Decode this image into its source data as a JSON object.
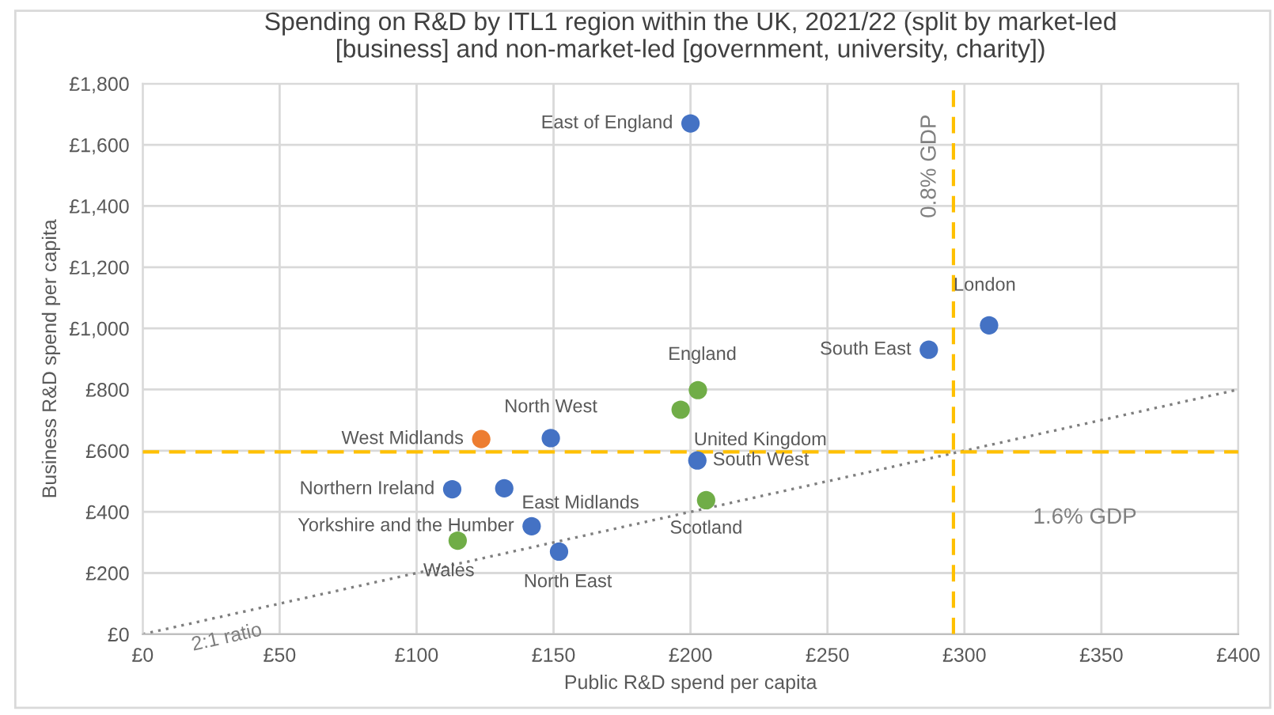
{
  "chart_data": {
    "type": "scatter",
    "title": "Spending on R&D by ITL1 region within the UK, 2021/22 (split by market-led\n[business] and non-market-led [government, university, charity])",
    "xlabel": "Public R&D spend per capita",
    "ylabel": "Business R&D spend per capita",
    "series": [
      {
        "color": "#4472c4",
        "x": [
          200,
          309,
          287,
          202.5,
          149,
          113,
          132,
          142,
          152
        ],
        "values": [
          1670,
          1010,
          930,
          568,
          641,
          474,
          477,
          353,
          270
        ]
      },
      {
        "color": "#ed7d31",
        "x": [
          123.6
        ],
        "values": [
          638
        ]
      },
      {
        "color": "#70ad47",
        "x": [
          202.7,
          196.4,
          205.7,
          115
        ],
        "values": [
          798,
          734,
          438,
          306
        ]
      },
      {
        "type": "line",
        "color": "#7f7f7f",
        "line_style": "dotted",
        "marker": "none",
        "x": [
          0,
          400
        ],
        "values": [
          0,
          800
        ]
      }
    ],
    "marker": "circle",
    "xlim": [
      0,
      400
    ],
    "ylim": [
      0,
      1800
    ],
    "xticks": [
      {
        "value": 0,
        "label": "£0"
      },
      {
        "value": 50,
        "label": "£50"
      },
      {
        "value": 100,
        "label": "£100"
      },
      {
        "value": 150,
        "label": "£150"
      },
      {
        "value": 200,
        "label": "£200"
      },
      {
        "value": 250,
        "label": "£250"
      },
      {
        "value": 300,
        "label": "£300"
      },
      {
        "value": 350,
        "label": "£350"
      },
      {
        "value": 400,
        "label": "£400"
      }
    ],
    "yticks": [
      {
        "value": 0,
        "label": "£0"
      },
      {
        "value": 200,
        "label": "£200"
      },
      {
        "value": 400,
        "label": "£400"
      },
      {
        "value": 600,
        "label": "£600"
      },
      {
        "value": 800,
        "label": "£800"
      },
      {
        "value": 1000,
        "label": "£1,000"
      },
      {
        "value": 1200,
        "label": "£1,200"
      },
      {
        "value": 1400,
        "label": "£1,400"
      },
      {
        "value": 1600,
        "label": "£1,600"
      },
      {
        "value": 1800,
        "label": "£1,800"
      }
    ],
    "grid": true,
    "ref_lines": [
      {
        "axis": "x",
        "value": 296,
        "label": "0.8% GDP",
        "color": "#ffc000",
        "line_style": "dashed"
      },
      {
        "axis": "y",
        "value": 596,
        "label": "1.6% GDP",
        "color": "#ffc000",
        "line_style": "dashed"
      }
    ],
    "annotations": [
      {
        "text": "East of England",
        "x": 200,
        "y": 1670
      },
      {
        "text": "London",
        "x": 309,
        "y": 1010
      },
      {
        "text": "South East",
        "x": 287,
        "y": 930
      },
      {
        "text": "England",
        "x": 202.7,
        "y": 798
      },
      {
        "text": "United Kingdom",
        "x": 196.4,
        "y": 734
      },
      {
        "text": "South West",
        "x": 202.5,
        "y": 568
      },
      {
        "text": "Scotland",
        "x": 205.7,
        "y": 438
      },
      {
        "text": "North West",
        "x": 149,
        "y": 641
      },
      {
        "text": "West Midlands",
        "x": 123.6,
        "y": 638
      },
      {
        "text": "Northern Ireland",
        "x": 113,
        "y": 474
      },
      {
        "text": "East Midlands",
        "x": 132,
        "y": 477
      },
      {
        "text": "Yorkshire and the Humber",
        "x": 142,
        "y": 353
      },
      {
        "text": "Wales",
        "x": 115,
        "y": 306
      },
      {
        "text": "North East",
        "x": 152,
        "y": 270
      },
      {
        "text": "2:1 ratio",
        "x": 30,
        "y": 60
      }
    ]
  }
}
